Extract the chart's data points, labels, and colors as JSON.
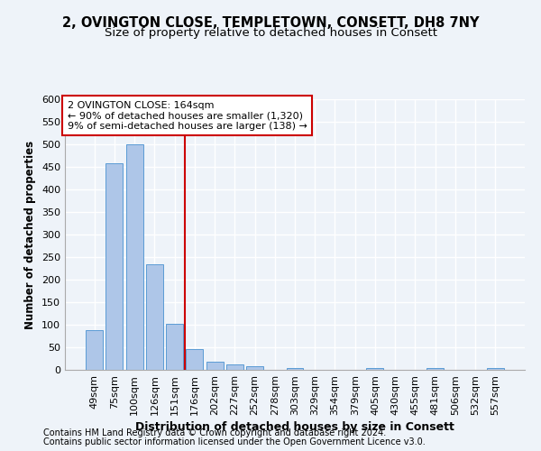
{
  "title1": "2, OVINGTON CLOSE, TEMPLETOWN, CONSETT, DH8 7NY",
  "title2": "Size of property relative to detached houses in Consett",
  "xlabel": "Distribution of detached houses by size in Consett",
  "ylabel": "Number of detached properties",
  "categories": [
    "49sqm",
    "75sqm",
    "100sqm",
    "126sqm",
    "151sqm",
    "176sqm",
    "202sqm",
    "227sqm",
    "252sqm",
    "278sqm",
    "303sqm",
    "329sqm",
    "354sqm",
    "379sqm",
    "405sqm",
    "430sqm",
    "455sqm",
    "481sqm",
    "506sqm",
    "532sqm",
    "557sqm"
  ],
  "values": [
    88,
    458,
    500,
    234,
    103,
    47,
    18,
    12,
    8,
    0,
    5,
    0,
    0,
    0,
    5,
    0,
    0,
    5,
    0,
    0,
    5
  ],
  "bar_color": "#aec6e8",
  "bar_edge_color": "#5b9bd5",
  "vline_color": "#cc0000",
  "annotation_line1": "2 OVINGTON CLOSE: 164sqm",
  "annotation_line2": "← 90% of detached houses are smaller (1,320)",
  "annotation_line3": "9% of semi-detached houses are larger (138) →",
  "annotation_box_color": "#ffffff",
  "annotation_box_edge": "#cc0000",
  "ylim": [
    0,
    600
  ],
  "yticks": [
    0,
    50,
    100,
    150,
    200,
    250,
    300,
    350,
    400,
    450,
    500,
    550,
    600
  ],
  "footer1": "Contains HM Land Registry data © Crown copyright and database right 2024.",
  "footer2": "Contains public sector information licensed under the Open Government Licence v3.0.",
  "bg_color": "#eef3f9",
  "plot_bg_color": "#eef3f9",
  "grid_color": "#ffffff",
  "title1_fontsize": 10.5,
  "title2_fontsize": 9.5,
  "xlabel_fontsize": 9,
  "ylabel_fontsize": 8.5,
  "tick_fontsize": 8,
  "footer_fontsize": 7,
  "annotation_fontsize": 8
}
